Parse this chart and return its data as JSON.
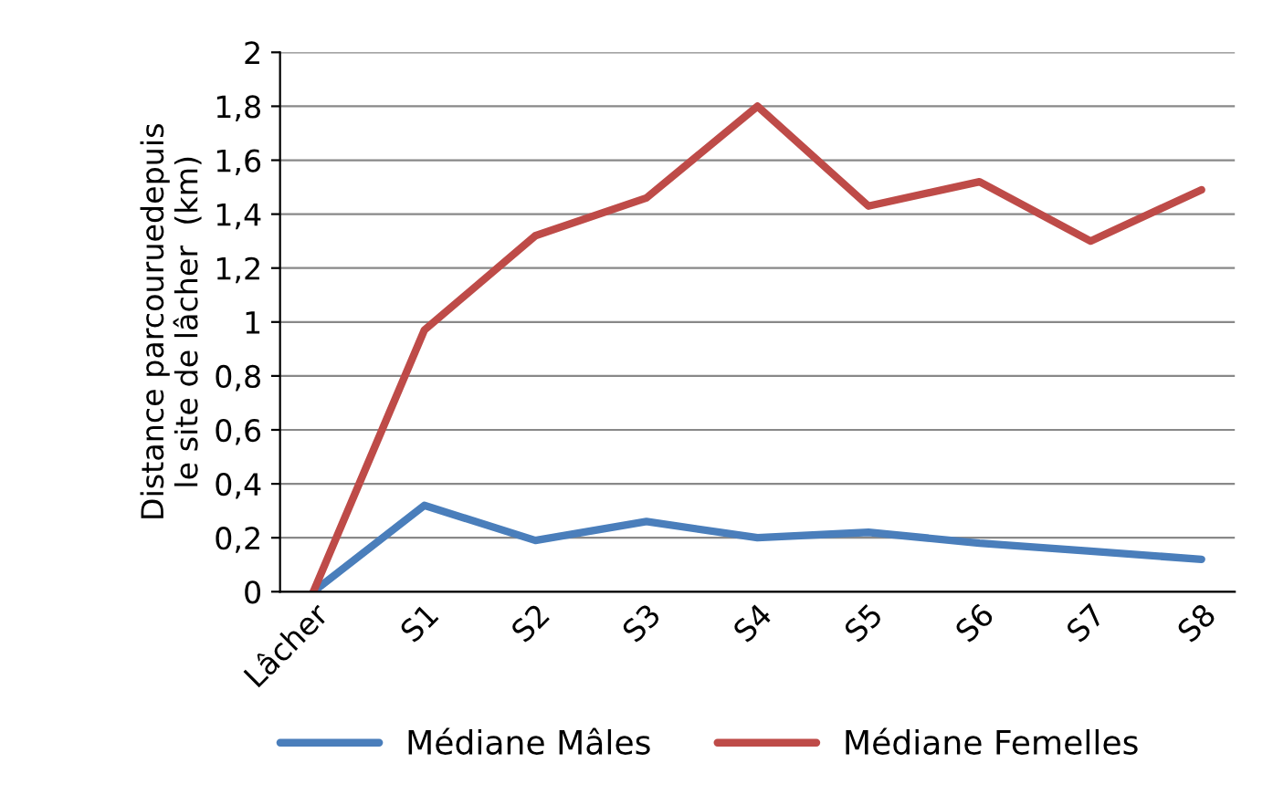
{
  "chart_data": {
    "type": "line",
    "ylabel": "Distance parcouruedepuis\nle site de lâcher  (km)",
    "categories": [
      "Lâcher",
      "S1",
      "S2",
      "S3",
      "S4",
      "S5",
      "S6",
      "S7",
      "S8"
    ],
    "series": [
      {
        "name": "Médiane Mâles",
        "color": "#4a7ebb",
        "values": [
          0,
          0.32,
          0.19,
          0.26,
          0.2,
          0.22,
          0.18,
          0.15,
          0.12
        ]
      },
      {
        "name": "Médiane Femelles",
        "color": "#be4b48",
        "values": [
          0,
          0.97,
          1.32,
          1.46,
          1.8,
          1.43,
          1.52,
          1.3,
          1.49
        ]
      }
    ],
    "ylim": [
      0,
      2
    ],
    "yticks": [
      0,
      {
        "value": 0.2,
        "label": "0,2"
      },
      {
        "value": 0.4,
        "label": "0,4"
      },
      {
        "value": 0.6,
        "label": "0,6"
      },
      {
        "value": 0.8,
        "label": "0,8"
      },
      1,
      {
        "value": 1.2,
        "label": "1,2"
      },
      {
        "value": 1.4,
        "label": "1,4"
      },
      {
        "value": 1.6,
        "label": "1,6"
      },
      {
        "value": 1.8,
        "label": "1,8"
      },
      2
    ],
    "grid": "y",
    "legend": "bottom",
    "marker": "none",
    "line_style": "solid"
  }
}
